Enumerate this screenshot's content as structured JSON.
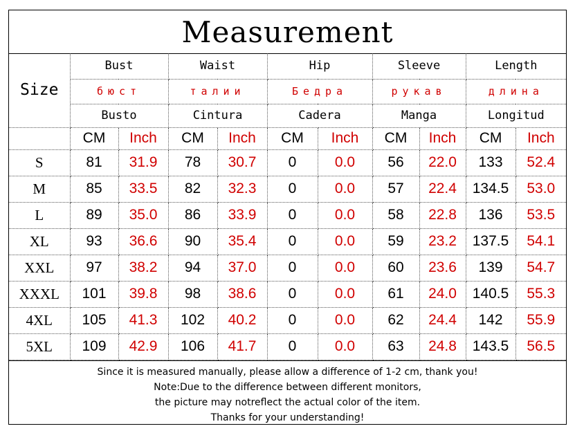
{
  "title": "Measurement",
  "size_label": "Size",
  "columns": [
    {
      "en": "Bust",
      "ru": "бюст",
      "es": "Busto"
    },
    {
      "en": "Waist",
      "ru": "талии",
      "es": "Cintura"
    },
    {
      "en": "Hip",
      "ru": "Бедра",
      "es": "Cadera"
    },
    {
      "en": "Sleeve",
      "ru": "рукав",
      "es": "Manga"
    },
    {
      "en": "Length",
      "ru": "длина",
      "es": "Longitud"
    }
  ],
  "units": {
    "cm": "CM",
    "inch": "Inch"
  },
  "rows": [
    {
      "size": "S",
      "values": [
        [
          "81",
          "31.9"
        ],
        [
          "78",
          "30.7"
        ],
        [
          "0",
          "0.0"
        ],
        [
          "56",
          "22.0"
        ],
        [
          "133",
          "52.4"
        ]
      ]
    },
    {
      "size": "M",
      "values": [
        [
          "85",
          "33.5"
        ],
        [
          "82",
          "32.3"
        ],
        [
          "0",
          "0.0"
        ],
        [
          "57",
          "22.4"
        ],
        [
          "134.5",
          "53.0"
        ]
      ]
    },
    {
      "size": "L",
      "values": [
        [
          "89",
          "35.0"
        ],
        [
          "86",
          "33.9"
        ],
        [
          "0",
          "0.0"
        ],
        [
          "58",
          "22.8"
        ],
        [
          "136",
          "53.5"
        ]
      ]
    },
    {
      "size": "XL",
      "values": [
        [
          "93",
          "36.6"
        ],
        [
          "90",
          "35.4"
        ],
        [
          "0",
          "0.0"
        ],
        [
          "59",
          "23.2"
        ],
        [
          "137.5",
          "54.1"
        ]
      ]
    },
    {
      "size": "XXL",
      "values": [
        [
          "97",
          "38.2"
        ],
        [
          "94",
          "37.0"
        ],
        [
          "0",
          "0.0"
        ],
        [
          "60",
          "23.6"
        ],
        [
          "139",
          "54.7"
        ]
      ]
    },
    {
      "size": "XXXL",
      "values": [
        [
          "101",
          "39.8"
        ],
        [
          "98",
          "38.6"
        ],
        [
          "0",
          "0.0"
        ],
        [
          "61",
          "24.0"
        ],
        [
          "140.5",
          "55.3"
        ]
      ]
    },
    {
      "size": "4XL",
      "values": [
        [
          "105",
          "41.3"
        ],
        [
          "102",
          "40.2"
        ],
        [
          "0",
          "0.0"
        ],
        [
          "62",
          "24.4"
        ],
        [
          "142",
          "55.9"
        ]
      ]
    },
    {
      "size": "5XL",
      "values": [
        [
          "109",
          "42.9"
        ],
        [
          "106",
          "41.7"
        ],
        [
          "0",
          "0.0"
        ],
        [
          "63",
          "24.8"
        ],
        [
          "143.5",
          "56.5"
        ]
      ]
    }
  ],
  "notes": [
    "Since it is measured manually, please allow a difference of 1-2 cm, thank you!",
    "Note:Due to the difference between different monitors,",
    "the picture may notreflect the actual color of the item.",
    "Thanks for your understanding!"
  ]
}
